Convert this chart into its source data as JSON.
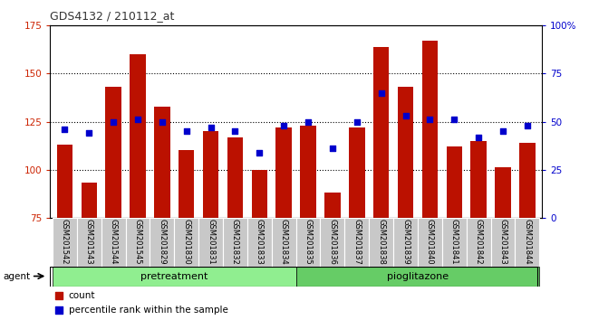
{
  "title": "GDS4132 / 210112_at",
  "samples": [
    "GSM201542",
    "GSM201543",
    "GSM201544",
    "GSM201545",
    "GSM201829",
    "GSM201830",
    "GSM201831",
    "GSM201832",
    "GSM201833",
    "GSM201834",
    "GSM201835",
    "GSM201836",
    "GSM201837",
    "GSM201838",
    "GSM201839",
    "GSM201840",
    "GSM201841",
    "GSM201842",
    "GSM201843",
    "GSM201844"
  ],
  "counts": [
    113,
    93,
    143,
    160,
    133,
    110,
    120,
    117,
    100,
    122,
    123,
    88,
    122,
    164,
    143,
    167,
    112,
    115,
    101,
    114
  ],
  "percentiles": [
    46,
    44,
    50,
    51,
    50,
    45,
    47,
    45,
    34,
    48,
    50,
    36,
    50,
    65,
    53,
    51,
    51,
    42,
    45,
    48
  ],
  "groups": [
    {
      "label": "pretreatment",
      "start": 0,
      "end": 9,
      "color": "#90EE90"
    },
    {
      "label": "pioglitazone",
      "start": 10,
      "end": 19,
      "color": "#66CC66"
    }
  ],
  "ylim_left": [
    75,
    175
  ],
  "ylim_right": [
    0,
    100
  ],
  "yticks_left": [
    75,
    100,
    125,
    150,
    175
  ],
  "yticks_right": [
    0,
    25,
    50,
    75,
    100
  ],
  "yticklabels_right": [
    "0",
    "25",
    "50",
    "75",
    "100%"
  ],
  "bar_color": "#BB1100",
  "dot_color": "#0000CC",
  "left_tick_color": "#CC2200",
  "right_tick_color": "#0000CC",
  "title_color": "#333333",
  "agent_label": "agent",
  "legend_count_label": "count",
  "legend_pct_label": "percentile rank within the sample",
  "xticklabel_bg": "#c8c8c8",
  "figsize": [
    6.5,
    3.54
  ],
  "dpi": 100
}
